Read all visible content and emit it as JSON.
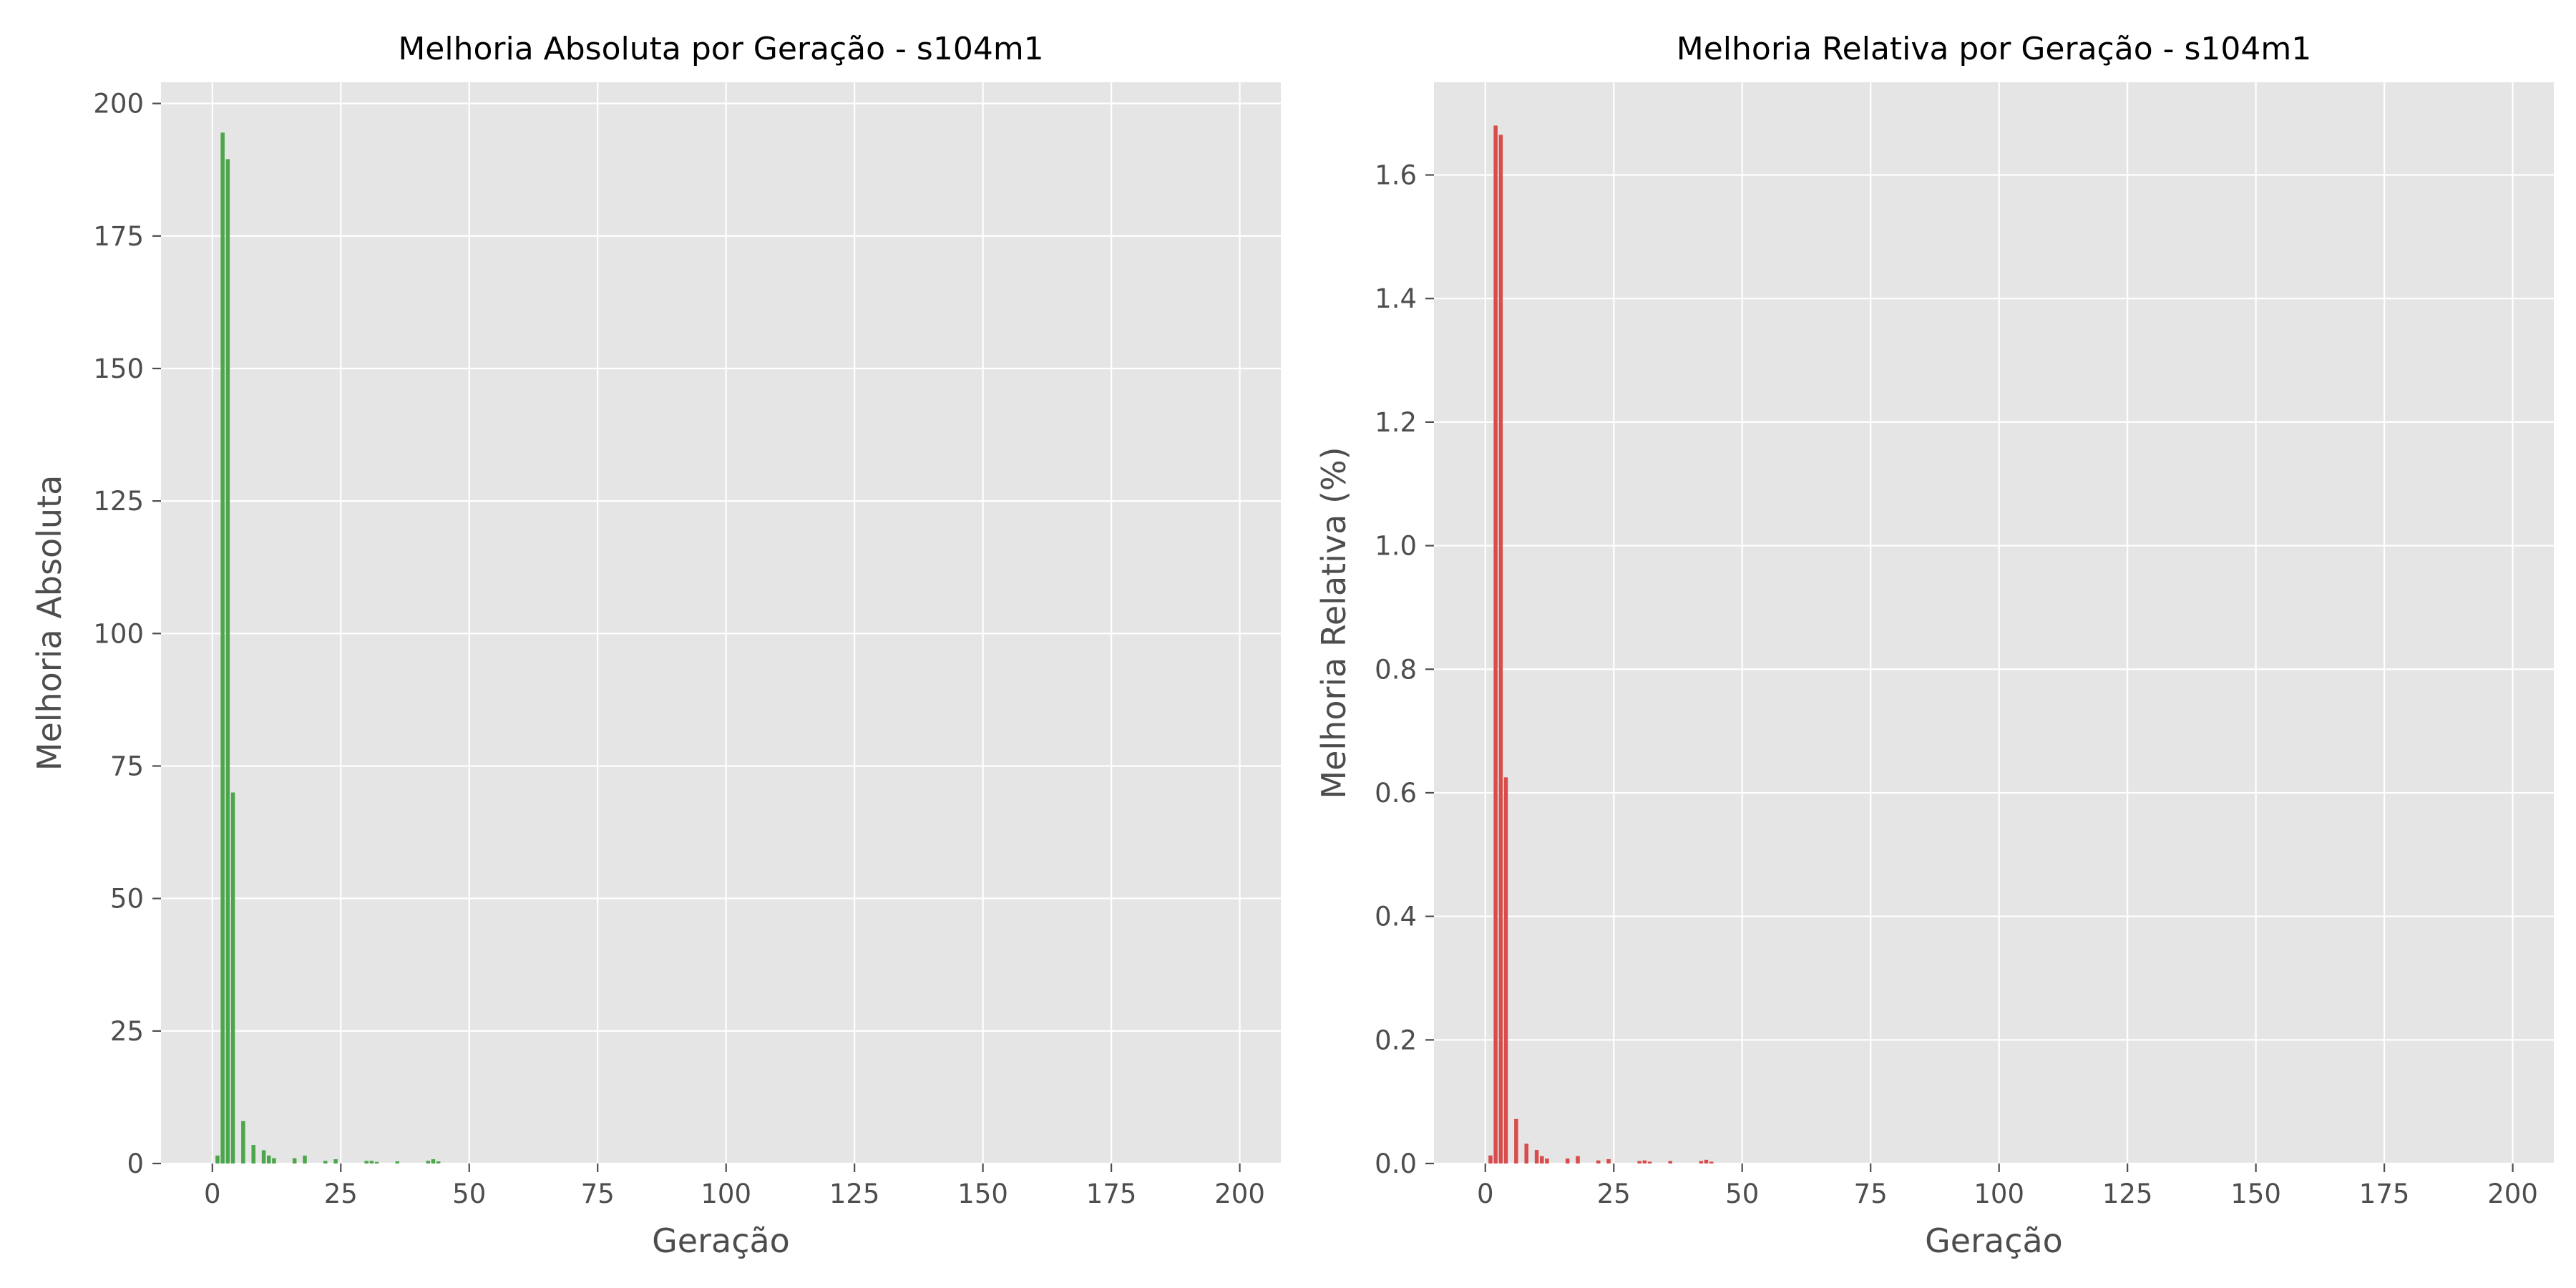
{
  "colors": {
    "plot_background": "#e5e5e5",
    "grid": "#ffffff",
    "tick_color": "#4d4d4d",
    "text_color": "#4d4d4d",
    "title_color": "#000000"
  },
  "chart_data": [
    {
      "type": "bar",
      "title": "Melhoria Absoluta por Geração - s104m1",
      "xlabel": "Geração",
      "ylabel": "Melhoria Absoluta",
      "xlim": [
        -10,
        208
      ],
      "ylim": [
        0,
        204
      ],
      "xticks": [
        0,
        25,
        50,
        75,
        100,
        125,
        150,
        175,
        200
      ],
      "yticks": [
        0,
        25,
        50,
        75,
        100,
        125,
        150,
        175,
        200
      ],
      "grid": true,
      "bar_color": "#4ca64c",
      "x": [
        1,
        2,
        3,
        4,
        6,
        8,
        10,
        11,
        12,
        16,
        18,
        22,
        24,
        30,
        31,
        32,
        36,
        42,
        43,
        44
      ],
      "values": [
        1.5,
        194.5,
        189.5,
        70.0,
        8.0,
        3.5,
        2.5,
        1.5,
        1.0,
        1.0,
        1.5,
        0.5,
        0.8,
        0.5,
        0.5,
        0.3,
        0.4,
        0.5,
        0.8,
        0.4
      ]
    },
    {
      "type": "bar",
      "title": "Melhoria Relativa por Geração - s104m1",
      "xlabel": "Geração",
      "ylabel": "Melhoria Relativa (%)",
      "xlim": [
        -10,
        208
      ],
      "ylim": [
        0,
        1.75
      ],
      "xticks": [
        0,
        25,
        50,
        75,
        100,
        125,
        150,
        175,
        200
      ],
      "yticks": [
        0.0,
        0.2,
        0.4,
        0.6,
        0.8,
        1.0,
        1.2,
        1.4,
        1.6
      ],
      "ytick_labels": [
        "0.0",
        "0.2",
        "0.4",
        "0.6",
        "0.8",
        "1.0",
        "1.2",
        "1.4",
        "1.6"
      ],
      "grid": true,
      "bar_color": "#d94c4c",
      "x": [
        1,
        2,
        3,
        4,
        6,
        8,
        10,
        11,
        12,
        16,
        18,
        22,
        24,
        30,
        31,
        32,
        36,
        42,
        43,
        44
      ],
      "values": [
        0.013,
        1.68,
        1.665,
        0.625,
        0.072,
        0.032,
        0.022,
        0.012,
        0.008,
        0.008,
        0.012,
        0.005,
        0.007,
        0.004,
        0.005,
        0.003,
        0.004,
        0.004,
        0.006,
        0.003
      ]
    }
  ]
}
